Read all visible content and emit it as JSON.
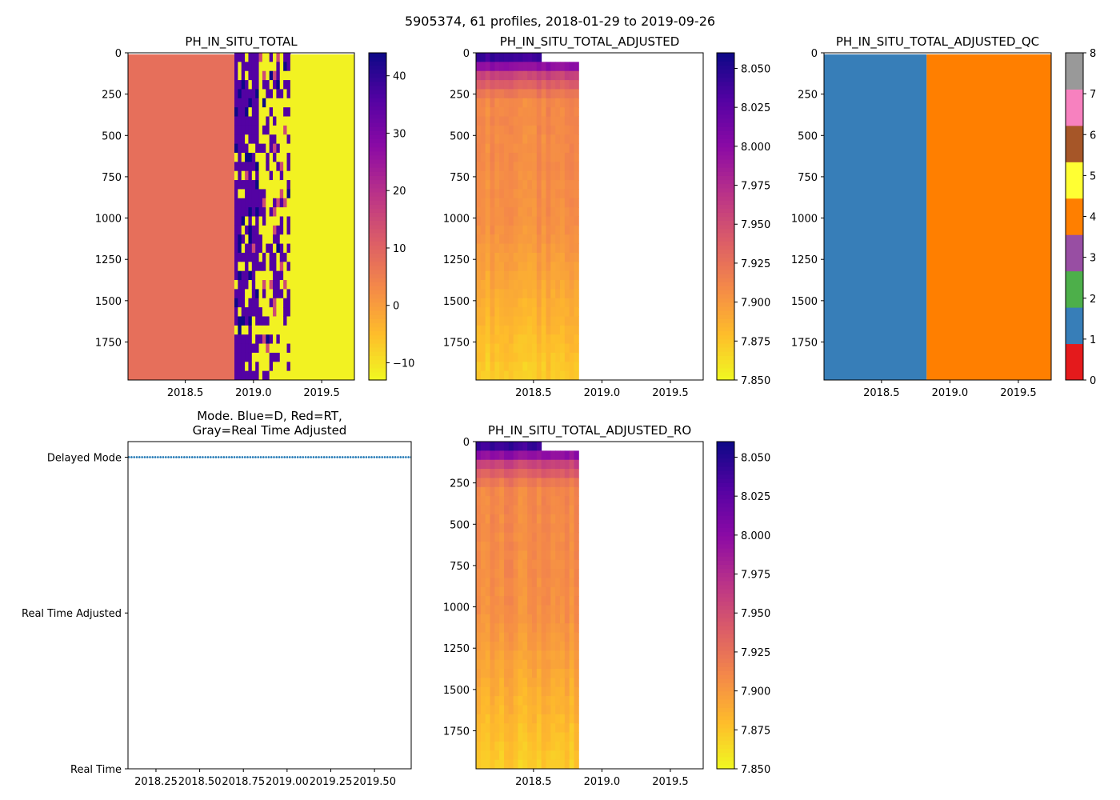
{
  "figure_title": "5905374, 61 profiles, 2018-01-29 to 2019-09-26",
  "chart_data": [
    {
      "id": "ph_raw",
      "type": "heatmap",
      "title": "PH_IN_SITU_TOTAL",
      "xlim": [
        2018.08,
        2019.74
      ],
      "ylim": [
        1980,
        0
      ],
      "xticks": [
        2018.5,
        2019.0,
        2019.5
      ],
      "xtick_labels": [
        "2018.5",
        "2019.0",
        "2019.5"
      ],
      "yticks": [
        0,
        250,
        500,
        750,
        1000,
        1250,
        1500,
        1750
      ],
      "ytick_labels": [
        "0",
        "250",
        "500",
        "750",
        "1000",
        "1250",
        "1500",
        "1750"
      ],
      "colormap": "plasma_r",
      "clim": [
        -13,
        44
      ],
      "cbar_ticks": [
        -10,
        0,
        10,
        20,
        30,
        40
      ],
      "cbar_tick_labels": [
        "−10",
        "0",
        "10",
        "20",
        "30",
        "40"
      ],
      "columns": [
        {
          "x0": 2018.08,
          "x1": 2018.86,
          "value": 7.9,
          "note": "fill value region"
        },
        {
          "x0": 2018.86,
          "x1": 2019.27,
          "value": "mixed",
          "note": "noisy mix of ~-12 and ~36"
        },
        {
          "x0": 2019.27,
          "x1": 2019.74,
          "value": -12
        }
      ]
    },
    {
      "id": "ph_adjusted",
      "type": "heatmap",
      "title": "PH_IN_SITU_TOTAL_ADJUSTED",
      "xlim": [
        2018.08,
        2019.74
      ],
      "ylim": [
        1980,
        0
      ],
      "xticks": [
        2018.5,
        2019.0,
        2019.5
      ],
      "xtick_labels": [
        "2018.5",
        "2019.0",
        "2019.5"
      ],
      "yticks": [
        0,
        250,
        500,
        750,
        1000,
        1250,
        1500,
        1750
      ],
      "ytick_labels": [
        "0",
        "250",
        "500",
        "750",
        "1000",
        "1250",
        "1500",
        "1750"
      ],
      "colormap": "plasma_r",
      "clim": [
        7.85,
        8.06
      ],
      "cbar_ticks": [
        7.85,
        7.875,
        7.9,
        7.925,
        7.95,
        7.975,
        8.0,
        8.025,
        8.05
      ],
      "cbar_tick_labels": [
        "7.850",
        "7.875",
        "7.900",
        "7.925",
        "7.950",
        "7.975",
        "8.000",
        "8.025",
        "8.050"
      ],
      "data_extent_x": [
        2018.08,
        2018.83
      ],
      "depth_profile": {
        "surface": 8.04,
        "at_100": 7.96,
        "at_250": 7.91,
        "at_1000": 7.905,
        "at_1980": 7.87
      }
    },
    {
      "id": "ph_adjusted_qc",
      "type": "heatmap",
      "title": "PH_IN_SITU_TOTAL_ADJUSTED_QC",
      "xlim": [
        2018.08,
        2019.74
      ],
      "ylim": [
        1980,
        0
      ],
      "xticks": [
        2018.5,
        2019.0,
        2019.5
      ],
      "xtick_labels": [
        "2018.5",
        "2019.0",
        "2019.5"
      ],
      "yticks": [
        0,
        250,
        500,
        750,
        1000,
        1250,
        1500,
        1750
      ],
      "ytick_labels": [
        "0",
        "250",
        "500",
        "750",
        "1000",
        "1250",
        "1500",
        "1750"
      ],
      "qc_colors": [
        "#e41a1c",
        "#377eb8",
        "#4daf4a",
        "#984ea3",
        "#ff7f00",
        "#ffff33",
        "#a65628",
        "#f781bf",
        "#999999"
      ],
      "clim": [
        0,
        8
      ],
      "cbar_ticks": [
        0,
        1,
        2,
        3,
        4,
        5,
        6,
        7,
        8
      ],
      "cbar_tick_labels": [
        "0",
        "1",
        "2",
        "3",
        "4",
        "5",
        "6",
        "7",
        "8"
      ],
      "columns": [
        {
          "x0": 2018.08,
          "x1": 2018.83,
          "qc": 1
        },
        {
          "x0": 2018.83,
          "x1": 2019.74,
          "qc": 4
        }
      ]
    },
    {
      "id": "mode",
      "type": "scatter",
      "title_line1": "Mode. Blue=D, Red=RT,",
      "title_line2": "Gray=Real Time Adjusted",
      "xlim": [
        2018.09,
        2019.71
      ],
      "ylim": [
        0,
        2.1
      ],
      "xticks": [
        2018.25,
        2018.5,
        2018.75,
        2019.0,
        2019.25,
        2019.5
      ],
      "xtick_labels": [
        "2018.25",
        "2018.50",
        "2018.75",
        "2019.00",
        "2019.25",
        "2019.50"
      ],
      "yticks": [
        0,
        1,
        2
      ],
      "ytick_labels": [
        "Real Time",
        "Real Time Adjusted",
        "Delayed Mode"
      ],
      "series": [
        {
          "name": "Delayed Mode",
          "y": 2,
          "x_start": 2018.08,
          "x_end": 2019.74,
          "count": 61,
          "color": "#1f77b4"
        }
      ]
    },
    {
      "id": "ph_adjusted_ro",
      "type": "heatmap",
      "title": "PH_IN_SITU_TOTAL_ADJUSTED_RO",
      "xlim": [
        2018.08,
        2019.74
      ],
      "ylim": [
        1980,
        0
      ],
      "xticks": [
        2018.5,
        2019.0,
        2019.5
      ],
      "xtick_labels": [
        "2018.5",
        "2019.0",
        "2019.5"
      ],
      "yticks": [
        0,
        250,
        500,
        750,
        1000,
        1250,
        1500,
        1750
      ],
      "ytick_labels": [
        "0",
        "250",
        "500",
        "750",
        "1000",
        "1250",
        "1500",
        "1750"
      ],
      "colormap": "plasma_r",
      "clim": [
        7.85,
        8.06
      ],
      "cbar_ticks": [
        7.85,
        7.875,
        7.9,
        7.925,
        7.95,
        7.975,
        8.0,
        8.025,
        8.05
      ],
      "cbar_tick_labels": [
        "7.850",
        "7.875",
        "7.900",
        "7.925",
        "7.950",
        "7.975",
        "8.000",
        "8.025",
        "8.050"
      ],
      "data_extent_x": [
        2018.08,
        2018.83
      ],
      "depth_profile": {
        "surface": 8.04,
        "at_100": 7.96,
        "at_250": 7.91,
        "at_1000": 7.905,
        "at_1980": 7.87
      }
    }
  ]
}
